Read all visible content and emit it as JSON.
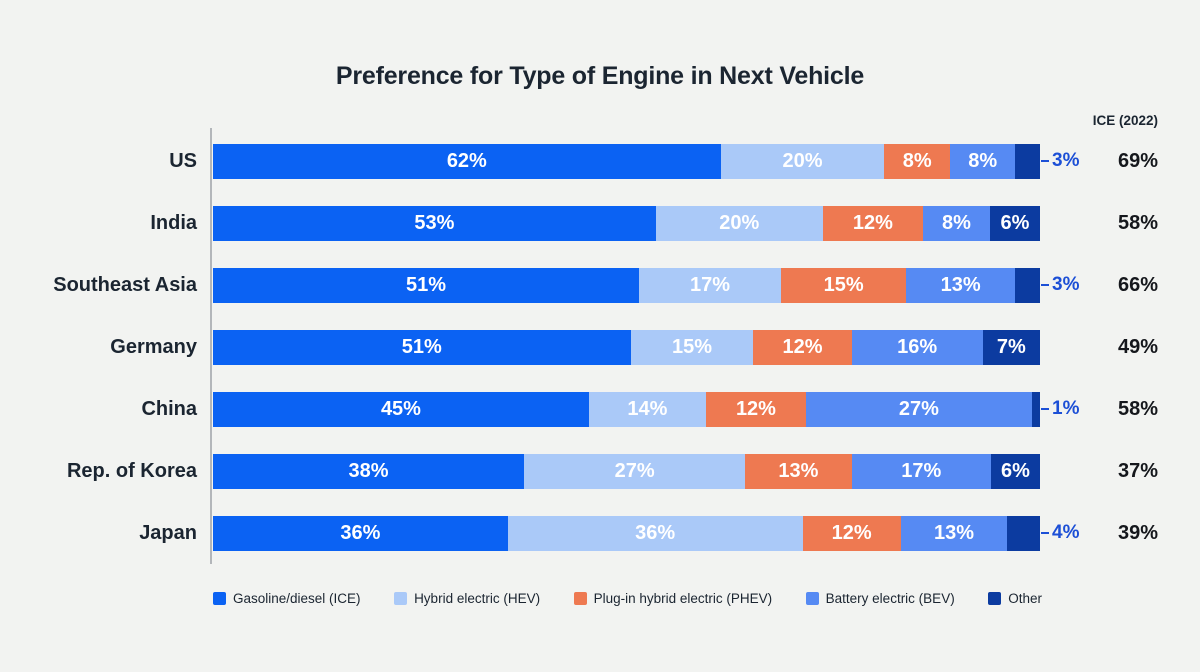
{
  "title": "Preference for Type of Engine in Next Vehicle",
  "ice_2022_header": "ICE (2022)",
  "colors": {
    "background": "#f2f3f1",
    "axis_line": "#b3b6ba",
    "outside_label_blue": "#1c4fd6",
    "text_dark": "#1b2531"
  },
  "chart_data": {
    "type": "bar",
    "orientation": "horizontal",
    "stacked": true,
    "grid": false,
    "legend_position": "bottom",
    "categories": [
      "US",
      "India",
      "Southeast Asia",
      "Germany",
      "China",
      "Rep. of Korea",
      "Japan"
    ],
    "series": [
      {
        "name": "Gasoline/diesel (ICE)",
        "color": "#0b62f3",
        "values": [
          62,
          53,
          51,
          51,
          45,
          38,
          36
        ]
      },
      {
        "name": "Hybrid electric (HEV)",
        "color": "#aac9f8",
        "values": [
          20,
          20,
          17,
          15,
          14,
          27,
          36
        ]
      },
      {
        "name": "Plug-in hybrid electric (PHEV)",
        "color": "#ee7951",
        "values": [
          8,
          12,
          15,
          12,
          12,
          13,
          12
        ]
      },
      {
        "name": "Battery electric (BEV)",
        "color": "#568af3",
        "values": [
          8,
          8,
          13,
          16,
          27,
          17,
          13
        ]
      },
      {
        "name": "Other",
        "color": "#0c3ba0",
        "values": [
          3,
          6,
          3,
          7,
          1,
          6,
          4
        ]
      }
    ],
    "value_suffix": "%",
    "ice_2022_values": [
      "69%",
      "58%",
      "66%",
      "49%",
      "58%",
      "37%",
      "39%"
    ]
  }
}
